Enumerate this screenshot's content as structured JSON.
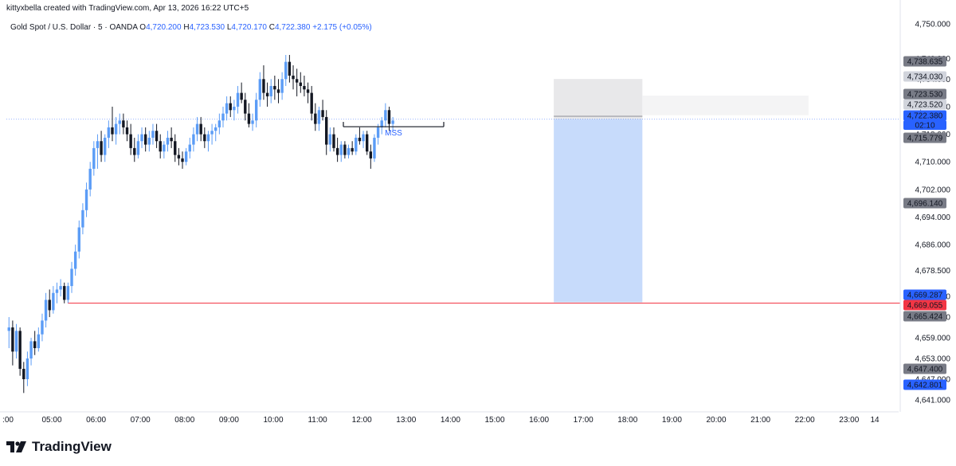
{
  "header": {
    "credit": "kittyxbella created with TradingView.com, Apr 13, 2026 16:22 UTC+5",
    "symbol": "Gold Spot / U.S. Dollar · 5 · OANDA",
    "open_label": "O",
    "open": "4,720.200",
    "high_label": "H",
    "high": "4,723.530",
    "low_label": "L",
    "low": "4,720.170",
    "close_label": "C",
    "close": "4,722.380",
    "change": "+2.175 (+0.05%)"
  },
  "brand": {
    "name": "TradingView",
    "logo_icon": "tradingview-logo-icon"
  },
  "colors": {
    "up": "#5b9cf6",
    "down": "#131722",
    "red_line": "#f23645",
    "stop_zone": "#e8e8ea",
    "target_zone": "#c7dbfb",
    "light_zone": "#f4f4f5",
    "label_gray": "#787b86",
    "label_blue": "#2962ff",
    "label_red": "#f23645"
  },
  "chart_data": {
    "type": "candlestick",
    "x_tick_labels": [
      ":00",
      "05:00",
      "06:00",
      "07:00",
      "08:00",
      "09:00",
      "10:00",
      "11:00",
      "12:00",
      "13:00",
      "14:00",
      "15:00",
      "16:00",
      "17:00",
      "18:00",
      "19:00",
      "20:00",
      "21:00",
      "22:00",
      "23:00",
      "14"
    ],
    "y_tick_labels": [
      "4,750.000",
      "4,740.000",
      "4,734.000",
      "4,726.000",
      "4,718.000",
      "4,710.000",
      "4,702.000",
      "4,694.000",
      "4,686.000",
      "4,678.500",
      "4,671.000",
      "4,665.000",
      "4,659.000",
      "4,653.000",
      "4,647.000",
      "4,641.000"
    ],
    "ylim": [
      4636,
      4753
    ],
    "start_time": "04:00",
    "candle_interval_min": 5,
    "candles": [
      [
        4661,
        4665,
        4656,
        4662
      ],
      [
        4662,
        4664,
        4651,
        4655
      ],
      [
        4655,
        4663,
        4653,
        4661
      ],
      [
        4661,
        4662,
        4648,
        4650
      ],
      [
        4650,
        4652,
        4643,
        4647
      ],
      [
        4647,
        4655,
        4645,
        4653
      ],
      [
        4653,
        4659,
        4651,
        4658
      ],
      [
        4658,
        4661,
        4654,
        4656
      ],
      [
        4656,
        4662,
        4655,
        4660
      ],
      [
        4660,
        4666,
        4658,
        4664
      ],
      [
        4664,
        4672,
        4662,
        4670
      ],
      [
        4670,
        4673,
        4665,
        4667
      ],
      [
        4667,
        4674,
        4666,
        4672
      ],
      [
        4672,
        4675,
        4669,
        4673
      ],
      [
        4673,
        4676,
        4671,
        4674
      ],
      [
        4674,
        4675,
        4669,
        4670
      ],
      [
        4670,
        4675,
        4669,
        4674
      ],
      [
        4674,
        4681,
        4672,
        4679
      ],
      [
        4679,
        4686,
        4677,
        4684
      ],
      [
        4684,
        4693,
        4682,
        4691
      ],
      [
        4691,
        4698,
        4689,
        4696
      ],
      [
        4696,
        4704,
        4694,
        4702
      ],
      [
        4702,
        4710,
        4700,
        4708
      ],
      [
        4708,
        4716,
        4706,
        4714
      ],
      [
        4714,
        4718,
        4708,
        4716
      ],
      [
        4716,
        4719,
        4710,
        4712
      ],
      [
        4712,
        4718,
        4710,
        4717
      ],
      [
        4717,
        4722,
        4714,
        4720
      ],
      [
        4720,
        4726,
        4716,
        4718
      ],
      [
        4718,
        4723,
        4715,
        4721
      ],
      [
        4721,
        4724,
        4718,
        4722
      ],
      [
        4722,
        4724,
        4718,
        4720
      ],
      [
        4720,
        4722,
        4716,
        4718
      ],
      [
        4718,
        4721,
        4712,
        4714
      ],
      [
        4714,
        4717,
        4710,
        4712
      ],
      [
        4712,
        4718,
        4711,
        4716
      ],
      [
        4716,
        4720,
        4714,
        4718
      ],
      [
        4718,
        4720,
        4713,
        4715
      ],
      [
        4715,
        4719,
        4713,
        4717
      ],
      [
        4717,
        4721,
        4715,
        4719
      ],
      [
        4719,
        4721,
        4714,
        4716
      ],
      [
        4716,
        4718,
        4711,
        4713
      ],
      [
        4713,
        4716,
        4711,
        4715
      ],
      [
        4715,
        4719,
        4713,
        4717
      ],
      [
        4717,
        4720,
        4714,
        4716
      ],
      [
        4716,
        4718,
        4710,
        4712
      ],
      [
        4712,
        4714,
        4709,
        4711
      ],
      [
        4711,
        4713,
        4708,
        4710
      ],
      [
        4710,
        4714,
        4709,
        4713
      ],
      [
        4713,
        4717,
        4711,
        4715
      ],
      [
        4715,
        4720,
        4713,
        4718
      ],
      [
        4718,
        4723,
        4716,
        4721
      ],
      [
        4721,
        4723,
        4716,
        4718
      ],
      [
        4718,
        4720,
        4714,
        4716
      ],
      [
        4716,
        4719,
        4713,
        4718
      ],
      [
        4718,
        4721,
        4715,
        4719
      ],
      [
        4719,
        4721,
        4716,
        4720
      ],
      [
        4720,
        4724,
        4718,
        4722
      ],
      [
        4722,
        4726,
        4720,
        4724
      ],
      [
        4724,
        4729,
        4722,
        4727
      ],
      [
        4727,
        4729,
        4723,
        4725
      ],
      [
        4725,
        4728,
        4722,
        4726
      ],
      [
        4726,
        4732,
        4724,
        4730
      ],
      [
        4730,
        4733,
        4727,
        4728
      ],
      [
        4728,
        4730,
        4722,
        4724
      ],
      [
        4724,
        4727,
        4720,
        4721
      ],
      [
        4721,
        4724,
        4719,
        4722
      ],
      [
        4722,
        4730,
        4720,
        4728
      ],
      [
        4728,
        4736,
        4726,
        4734
      ],
      [
        4734,
        4738,
        4728,
        4730
      ],
      [
        4730,
        4733,
        4726,
        4729
      ],
      [
        4729,
        4734,
        4727,
        4732
      ],
      [
        4732,
        4735,
        4728,
        4731
      ],
      [
        4731,
        4734,
        4727,
        4730
      ],
      [
        4730,
        4736,
        4728,
        4734
      ],
      [
        4734,
        4741,
        4732,
        4739
      ],
      [
        4739,
        4741,
        4733,
        4735
      ],
      [
        4735,
        4738,
        4731,
        4734
      ],
      [
        4734,
        4737,
        4729,
        4733
      ],
      [
        4733,
        4736,
        4730,
        4732
      ],
      [
        4732,
        4735,
        4729,
        4731
      ],
      [
        4731,
        4733,
        4727,
        4730
      ],
      [
        4730,
        4732,
        4722,
        4724
      ],
      [
        4724,
        4727,
        4719,
        4721
      ],
      [
        4721,
        4726,
        4719,
        4725
      ],
      [
        4725,
        4728,
        4722,
        4723
      ],
      [
        4723,
        4725,
        4712,
        4715
      ],
      [
        4715,
        4720,
        4713,
        4718
      ],
      [
        4718,
        4720,
        4713,
        4714
      ],
      [
        4714,
        4717,
        4710,
        4712
      ],
      [
        4712,
        4716,
        4710,
        4715
      ],
      [
        4715,
        4716,
        4711,
        4712
      ],
      [
        4712,
        4715,
        4711,
        4714
      ],
      [
        4714,
        4716,
        4712,
        4713
      ],
      [
        4713,
        4718,
        4712,
        4717
      ],
      [
        4717,
        4720,
        4715,
        4716
      ],
      [
        4716,
        4719,
        4714,
        4718
      ],
      [
        4718,
        4719,
        4712,
        4713
      ],
      [
        4713,
        4715,
        4708,
        4711
      ],
      [
        4711,
        4718,
        4710,
        4717
      ],
      [
        4717,
        4721,
        4715,
        4720
      ],
      [
        4720,
        4723,
        4718,
        4722
      ],
      [
        4722,
        4727,
        4720,
        4725
      ],
      [
        4725,
        4726,
        4719,
        4721
      ],
      [
        4721,
        4723,
        4719,
        4722
      ]
    ],
    "annotations": [
      {
        "type": "text",
        "label": "MSS",
        "color": "#2962ff"
      },
      {
        "type": "horizontal_line",
        "price": 4669.055,
        "color": "#f23645"
      }
    ],
    "price_labels": [
      {
        "text": "4,738.635",
        "style": "gray"
      },
      {
        "text": "4,734.030",
        "style": "light"
      },
      {
        "text": "4,723.530",
        "style": "gray"
      },
      {
        "text": "4,723.520",
        "style": "light"
      },
      {
        "text": "4,722.380",
        "style": "blue"
      },
      {
        "text": "02:10",
        "style": "blue"
      },
      {
        "text": "4,715.779",
        "style": "gray"
      },
      {
        "text": "4,696.140",
        "style": "gray"
      },
      {
        "text": "4,669.287",
        "style": "blue"
      },
      {
        "text": "4,669.055",
        "style": "red"
      },
      {
        "text": "4,665.424",
        "style": "gray"
      },
      {
        "text": "4,647.400",
        "style": "gray"
      },
      {
        "text": "4,642.801",
        "style": "blue"
      }
    ]
  }
}
